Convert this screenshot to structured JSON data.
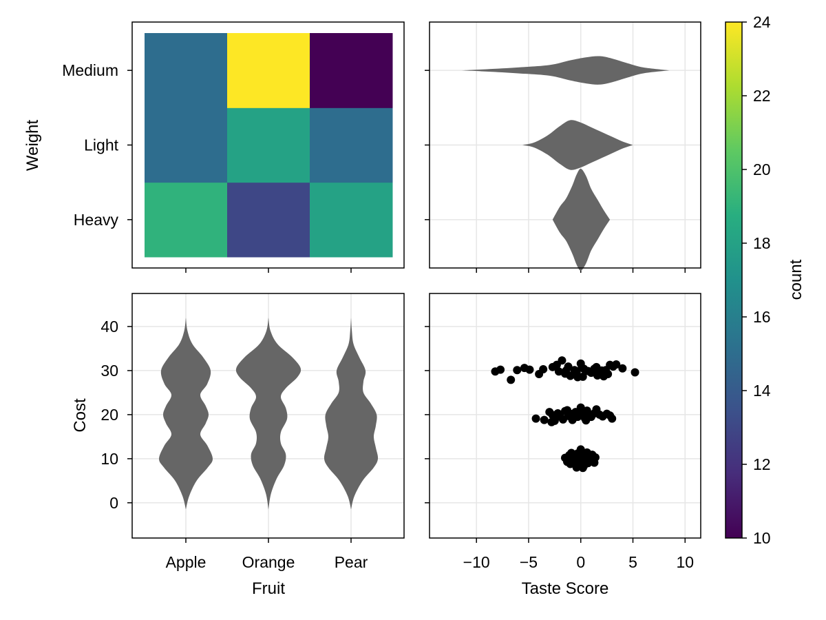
{
  "chart_data": [
    {
      "type": "heatmap",
      "panel": "top-left",
      "x_categories": [
        "Apple",
        "Orange",
        "Pear"
      ],
      "y_categories": [
        "Heavy",
        "Light",
        "Medium"
      ],
      "ylabel": "Weight",
      "values": [
        [
          19,
          13,
          18
        ],
        [
          15,
          18,
          15
        ],
        [
          15,
          24,
          10
        ]
      ],
      "colormap": "viridis",
      "colorrange": [
        10,
        24
      ]
    },
    {
      "type": "violin",
      "orientation": "horizontal",
      "panel": "top-right",
      "categories": [
        "Heavy",
        "Light",
        "Medium"
      ],
      "xlim": [
        -14.5,
        11.5
      ],
      "grid": true,
      "profiles": [
        {
          "category": "Heavy",
          "samples": [
            {
              "v": -2.7,
              "w": 0.0
            },
            {
              "v": -2.0,
              "w": 0.22
            },
            {
              "v": -1.4,
              "w": 0.36
            },
            {
              "v": -0.8,
              "w": 0.58
            },
            {
              "v": -0.4,
              "w": 0.76
            },
            {
              "v": 0.0,
              "w": 0.86
            },
            {
              "v": 0.5,
              "w": 0.74
            },
            {
              "v": 1.0,
              "w": 0.52
            },
            {
              "v": 1.6,
              "w": 0.34
            },
            {
              "v": 2.2,
              "w": 0.16
            },
            {
              "v": 2.8,
              "w": 0.0
            }
          ]
        },
        {
          "category": "Light",
          "samples": [
            {
              "v": -5.6,
              "w": 0.0
            },
            {
              "v": -4.5,
              "w": 0.04
            },
            {
              "v": -3.2,
              "w": 0.16
            },
            {
              "v": -2.0,
              "w": 0.32
            },
            {
              "v": -1.0,
              "w": 0.42
            },
            {
              "v": 0.0,
              "w": 0.38
            },
            {
              "v": 1.0,
              "w": 0.3
            },
            {
              "v": 2.0,
              "w": 0.22
            },
            {
              "v": 3.0,
              "w": 0.14
            },
            {
              "v": 4.0,
              "w": 0.06
            },
            {
              "v": 5.0,
              "w": 0.0
            }
          ]
        },
        {
          "category": "Medium",
          "samples": [
            {
              "v": -11.5,
              "w": 0.0
            },
            {
              "v": -9.0,
              "w": 0.02
            },
            {
              "v": -6.0,
              "w": 0.05
            },
            {
              "v": -3.0,
              "w": 0.09
            },
            {
              "v": -1.0,
              "w": 0.17
            },
            {
              "v": 0.5,
              "w": 0.22
            },
            {
              "v": 1.8,
              "w": 0.24
            },
            {
              "v": 3.0,
              "w": 0.2
            },
            {
              "v": 4.5,
              "w": 0.12
            },
            {
              "v": 6.0,
              "w": 0.05
            },
            {
              "v": 8.5,
              "w": 0.0
            }
          ]
        }
      ]
    },
    {
      "type": "violin",
      "orientation": "vertical",
      "panel": "bottom-left",
      "categories": [
        "Apple",
        "Orange",
        "Pear"
      ],
      "xlabel": "Fruit",
      "ylabel": "Cost",
      "ylim": [
        -8,
        47.5
      ],
      "yticks": [
        0,
        10,
        20,
        30,
        40
      ],
      "grid": true,
      "profiles": [
        {
          "category": "Apple",
          "samples": [
            {
              "v": -1.5,
              "w": 0.0
            },
            {
              "v": 1.5,
              "w": 0.08
            },
            {
              "v": 5.0,
              "w": 0.26
            },
            {
              "v": 8.0,
              "w": 0.53
            },
            {
              "v": 10.0,
              "w": 0.65
            },
            {
              "v": 13.0,
              "w": 0.52
            },
            {
              "v": 15.5,
              "w": 0.35
            },
            {
              "v": 18.0,
              "w": 0.48
            },
            {
              "v": 20.0,
              "w": 0.55
            },
            {
              "v": 22.0,
              "w": 0.48
            },
            {
              "v": 24.5,
              "w": 0.35
            },
            {
              "v": 27.0,
              "w": 0.52
            },
            {
              "v": 30.0,
              "w": 0.6
            },
            {
              "v": 33.0,
              "w": 0.42
            },
            {
              "v": 36.0,
              "w": 0.16
            },
            {
              "v": 39.0,
              "w": 0.04
            },
            {
              "v": 42.0,
              "w": 0.0
            }
          ]
        },
        {
          "category": "Orange",
          "samples": [
            {
              "v": -1.5,
              "w": 0.0
            },
            {
              "v": 2.0,
              "w": 0.06
            },
            {
              "v": 5.5,
              "w": 0.2
            },
            {
              "v": 8.5,
              "w": 0.38
            },
            {
              "v": 11.0,
              "w": 0.42
            },
            {
              "v": 13.5,
              "w": 0.3
            },
            {
              "v": 16.0,
              "w": 0.3
            },
            {
              "v": 19.0,
              "w": 0.45
            },
            {
              "v": 21.5,
              "w": 0.42
            },
            {
              "v": 24.0,
              "w": 0.3
            },
            {
              "v": 26.0,
              "w": 0.42
            },
            {
              "v": 28.5,
              "w": 0.7
            },
            {
              "v": 30.5,
              "w": 0.78
            },
            {
              "v": 33.0,
              "w": 0.58
            },
            {
              "v": 36.0,
              "w": 0.22
            },
            {
              "v": 39.0,
              "w": 0.05
            },
            {
              "v": 42.0,
              "w": 0.0
            }
          ]
        },
        {
          "category": "Pear",
          "samples": [
            {
              "v": -1.5,
              "w": 0.0
            },
            {
              "v": 1.5,
              "w": 0.08
            },
            {
              "v": 5.0,
              "w": 0.28
            },
            {
              "v": 8.0,
              "w": 0.55
            },
            {
              "v": 10.0,
              "w": 0.65
            },
            {
              "v": 12.5,
              "w": 0.6
            },
            {
              "v": 15.0,
              "w": 0.55
            },
            {
              "v": 17.5,
              "w": 0.6
            },
            {
              "v": 20.0,
              "w": 0.62
            },
            {
              "v": 22.5,
              "w": 0.48
            },
            {
              "v": 25.0,
              "w": 0.3
            },
            {
              "v": 27.5,
              "w": 0.3
            },
            {
              "v": 30.0,
              "w": 0.35
            },
            {
              "v": 33.0,
              "w": 0.2
            },
            {
              "v": 36.0,
              "w": 0.06
            },
            {
              "v": 39.0,
              "w": 0.02
            },
            {
              "v": 42.0,
              "w": 0.0
            }
          ]
        }
      ]
    },
    {
      "type": "scatter",
      "panel": "bottom-right",
      "xlabel": "Taste Score",
      "xlim": [
        -14.5,
        11.5
      ],
      "ylim": [
        -8,
        47.5
      ],
      "xticks": [
        -10,
        -5,
        0,
        5,
        10
      ],
      "xtick_labels": [
        "−10",
        "−5",
        "0",
        "5",
        "10"
      ],
      "grid": true,
      "points": [
        [
          -8.2,
          29.8
        ],
        [
          -7.7,
          30.2
        ],
        [
          -6.7,
          27.9
        ],
        [
          -6.1,
          30.1
        ],
        [
          -5.4,
          30.6
        ],
        [
          -4.9,
          30.2
        ],
        [
          -4.0,
          29.2
        ],
        [
          -3.6,
          30.3
        ],
        [
          -2.7,
          30.8
        ],
        [
          -2.3,
          31.3
        ],
        [
          -2.1,
          29.8
        ],
        [
          -1.5,
          29.3
        ],
        [
          -1.4,
          30.0
        ],
        [
          -1.2,
          30.9
        ],
        [
          -1.0,
          28.8
        ],
        [
          -0.6,
          30.1
        ],
        [
          -0.4,
          29.6
        ],
        [
          0.0,
          31.6
        ],
        [
          0.1,
          30.7
        ],
        [
          0.2,
          28.6
        ],
        [
          0.3,
          30.4
        ],
        [
          0.7,
          29.9
        ],
        [
          1.0,
          29.5
        ],
        [
          1.3,
          30.4
        ],
        [
          1.5,
          30.8
        ],
        [
          1.6,
          28.9
        ],
        [
          1.8,
          29.5
        ],
        [
          2.0,
          30.0
        ],
        [
          2.2,
          28.7
        ],
        [
          2.4,
          30.1
        ],
        [
          2.6,
          29.2
        ],
        [
          2.8,
          31.3
        ],
        [
          3.1,
          30.9
        ],
        [
          3.4,
          31.4
        ],
        [
          4.0,
          30.5
        ],
        [
          5.2,
          29.6
        ],
        [
          -1.8,
          32.3
        ],
        [
          -0.3,
          28.5
        ],
        [
          -4.3,
          19.1
        ],
        [
          -3.5,
          18.8
        ],
        [
          -3.0,
          20.6
        ],
        [
          -2.7,
          19.9
        ],
        [
          -2.5,
          18.6
        ],
        [
          -2.2,
          20.3
        ],
        [
          -2.0,
          19.6
        ],
        [
          -1.7,
          18.9
        ],
        [
          -1.5,
          20.8
        ],
        [
          -1.2,
          19.7
        ],
        [
          -1.0,
          20.2
        ],
        [
          -0.8,
          18.8
        ],
        [
          -0.5,
          20.6
        ],
        [
          -0.3,
          19.5
        ],
        [
          0.0,
          21.6
        ],
        [
          0.2,
          20.4
        ],
        [
          0.4,
          19.2
        ],
        [
          0.6,
          20.9
        ],
        [
          0.8,
          19.9
        ],
        [
          1.0,
          19.5
        ],
        [
          1.3,
          20.3
        ],
        [
          1.5,
          21.2
        ],
        [
          1.8,
          20.0
        ],
        [
          2.1,
          19.6
        ],
        [
          2.5,
          20.2
        ],
        [
          2.8,
          19.8
        ],
        [
          3.0,
          19.1
        ],
        [
          -2.8,
          18.3
        ],
        [
          -1.3,
          21.0
        ],
        [
          0.5,
          18.7
        ],
        [
          -1.5,
          10.2
        ],
        [
          -1.3,
          9.3
        ],
        [
          -1.1,
          10.8
        ],
        [
          -1.0,
          8.8
        ],
        [
          -0.8,
          9.9
        ],
        [
          -0.6,
          10.5
        ],
        [
          -0.5,
          9.2
        ],
        [
          -0.3,
          11.2
        ],
        [
          -0.2,
          8.6
        ],
        [
          0.0,
          12.1
        ],
        [
          0.0,
          10.0
        ],
        [
          0.1,
          9.5
        ],
        [
          0.2,
          10.9
        ],
        [
          0.3,
          8.4
        ],
        [
          0.4,
          9.9
        ],
        [
          0.5,
          10.4
        ],
        [
          0.6,
          11.4
        ],
        [
          0.7,
          9.0
        ],
        [
          0.8,
          10.2
        ],
        [
          1.0,
          9.6
        ],
        [
          1.1,
          10.9
        ],
        [
          1.3,
          9.1
        ],
        [
          1.4,
          10.3
        ],
        [
          -0.4,
          8.0
        ],
        [
          0.2,
          7.9
        ],
        [
          -0.9,
          11.3
        ]
      ]
    },
    {
      "type": "colorbar",
      "panel": "right",
      "label": "count",
      "range": [
        10,
        24
      ],
      "ticks": [
        10,
        12,
        14,
        16,
        18,
        20,
        22,
        24
      ]
    }
  ]
}
